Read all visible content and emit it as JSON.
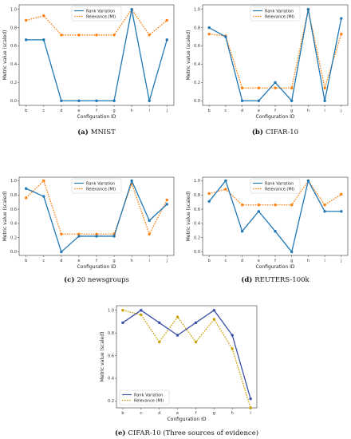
{
  "chart_data": [
    {
      "type": "line",
      "caption_label": "(a)",
      "caption_text": "MNIST",
      "xlabel": "Configuration ID",
      "ylabel": "Metric value (scaled)",
      "categories": [
        "b",
        "c",
        "d",
        "e",
        "f",
        "g",
        "h",
        "i",
        "j"
      ],
      "ylim": [
        -0.05,
        1.05
      ],
      "yticks": [
        0.0,
        0.2,
        0.4,
        0.6,
        0.8,
        1.0
      ],
      "legend_position": "top-center",
      "series": [
        {
          "name": "Rank Variation",
          "color": "#1f77b4",
          "style": "solid",
          "values": [
            0.667,
            0.667,
            0.0,
            0.0,
            0.0,
            0.0,
            1.0,
            0.0,
            0.667
          ]
        },
        {
          "name": "Relevance (MI)",
          "color": "#ff7f0e",
          "style": "dotted",
          "values": [
            0.88,
            0.93,
            0.72,
            0.72,
            0.72,
            0.72,
            1.0,
            0.72,
            0.88
          ]
        }
      ]
    },
    {
      "type": "line",
      "caption_label": "(b)",
      "caption_text": "CIFAR-10",
      "xlabel": "Configuration ID",
      "ylabel": "Metric value (scaled)",
      "categories": [
        "b",
        "c",
        "d",
        "e",
        "f",
        "g",
        "h",
        "i",
        "j"
      ],
      "ylim": [
        -0.05,
        1.05
      ],
      "yticks": [
        0.0,
        0.2,
        0.4,
        0.6,
        0.8,
        1.0
      ],
      "legend_position": "top-center",
      "series": [
        {
          "name": "Rank Variation",
          "color": "#1f77b4",
          "style": "solid",
          "values": [
            0.8,
            0.7,
            0.0,
            0.0,
            0.2,
            0.0,
            1.0,
            0.0,
            0.9
          ]
        },
        {
          "name": "Relevance (MI)",
          "color": "#ff7f0e",
          "style": "dotted",
          "values": [
            0.73,
            0.71,
            0.14,
            0.14,
            0.14,
            0.14,
            1.0,
            0.14,
            0.73
          ]
        }
      ]
    },
    {
      "type": "line",
      "caption_label": "(c)",
      "caption_text": "20 newsgroups",
      "xlabel": "Configuration ID",
      "ylabel": "Metric value (scaled)",
      "categories": [
        "b",
        "c",
        "d",
        "e",
        "f",
        "g",
        "h",
        "i",
        "j"
      ],
      "ylim": [
        -0.05,
        1.05
      ],
      "yticks": [
        0.0,
        0.2,
        0.4,
        0.6,
        0.8,
        1.0
      ],
      "legend_position": "top-center",
      "series": [
        {
          "name": "Rank Variation",
          "color": "#1f77b4",
          "style": "solid",
          "values": [
            0.89,
            0.78,
            0.0,
            0.22,
            0.22,
            0.22,
            1.0,
            0.44,
            0.67
          ]
        },
        {
          "name": "Relevance (MI)",
          "color": "#ff7f0e",
          "style": "dotted",
          "values": [
            0.76,
            1.0,
            0.25,
            0.25,
            0.25,
            0.25,
            0.96,
            0.25,
            0.73
          ]
        }
      ]
    },
    {
      "type": "line",
      "caption_label": "(d)",
      "caption_text": "REUTERS-100k",
      "xlabel": "Configuration ID",
      "ylabel": "Metric value (scaled)",
      "categories": [
        "b",
        "c",
        "d",
        "e",
        "f",
        "g",
        "h",
        "i",
        "j"
      ],
      "ylim": [
        -0.05,
        1.05
      ],
      "yticks": [
        0.0,
        0.2,
        0.4,
        0.6,
        0.8,
        1.0
      ],
      "legend_position": "top-center",
      "series": [
        {
          "name": "Rank Variation",
          "color": "#1f77b4",
          "style": "solid",
          "values": [
            0.71,
            1.0,
            0.29,
            0.57,
            0.29,
            0.0,
            1.0,
            0.57,
            0.57
          ]
        },
        {
          "name": "Relevance (MI)",
          "color": "#ff7f0e",
          "style": "dotted",
          "values": [
            0.82,
            0.88,
            0.66,
            0.66,
            0.66,
            0.66,
            1.0,
            0.66,
            0.81
          ]
        }
      ]
    },
    {
      "type": "line",
      "caption_label": "(e)",
      "caption_text": "CIFAR-10 (Three sources of evidence)",
      "xlabel": "Configuration ID",
      "ylabel": "Metric value (scaled)",
      "categories": [
        "b",
        "c",
        "d",
        "e",
        "f",
        "g",
        "h",
        "i"
      ],
      "ylim": [
        0.14,
        1.04
      ],
      "yticks": [
        0.2,
        0.4,
        0.6,
        0.8,
        1.0
      ],
      "legend_position": "lower-left",
      "series": [
        {
          "name": "Rank Variation",
          "color": "#3a4fa8",
          "style": "solid",
          "values": [
            0.89,
            1.0,
            0.89,
            0.78,
            0.89,
            1.0,
            0.78,
            0.22
          ]
        },
        {
          "name": "Relevance (MI)",
          "color": "#c8a000",
          "style": "dotted",
          "values": [
            1.0,
            0.96,
            0.72,
            0.94,
            0.72,
            0.92,
            0.66,
            0.14
          ]
        }
      ]
    }
  ]
}
